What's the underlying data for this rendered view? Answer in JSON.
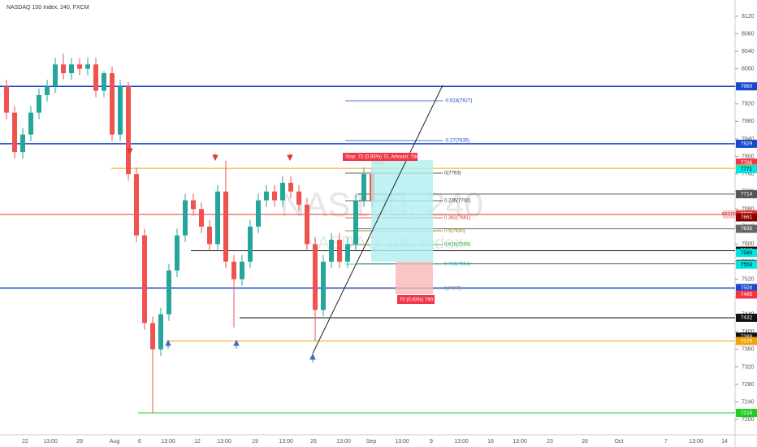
{
  "chart_data": {
    "type": "candlestick",
    "title": "NASDAQ 100 Index, 240, FXCM",
    "watermark": "NAS100, 240",
    "watermark_sub": "NASDAQ 100 Index",
    "up_color": "#26a69a",
    "down_color": "#ef5350",
    "ylim": [
      7165,
      8157
    ],
    "yticks": [
      7200,
      7240,
      7280,
      7320,
      7360,
      7400,
      7440,
      7480,
      7520,
      7560,
      7600,
      7640,
      7680,
      7720,
      7760,
      7800,
      7840,
      7880,
      7920,
      7960,
      8000,
      8040,
      8080,
      8120
    ],
    "x_labels": [
      "22",
      "13:00",
      "29",
      "Aug",
      "6",
      "13:00",
      "12",
      "13:00",
      "19",
      "13:00",
      "26",
      "13:00",
      "Sep",
      "13:00",
      "9",
      "13:00",
      "16",
      "13:00",
      "23",
      "26",
      "Oct",
      "7",
      "13:00",
      "14"
    ],
    "open": [
      7960,
      7900,
      7810,
      7850,
      7900,
      7940,
      7960,
      8010,
      7990,
      8010,
      8000,
      8010,
      7950,
      7990,
      7850,
      7960,
      7760,
      7620,
      7420,
      7360,
      7440,
      7540,
      7620,
      7700,
      7680,
      7640,
      7600,
      7720,
      7560,
      7520,
      7560,
      7640,
      7700,
      7720,
      7700,
      7740,
      7720,
      7690,
      7600,
      7450,
      7560,
      7610,
      7560,
      7600,
      7700,
      7760
    ],
    "high": [
      7975,
      7915,
      7865,
      7915,
      7955,
      7975,
      8025,
      8035,
      8025,
      8025,
      8025,
      8025,
      7995,
      8005,
      7975,
      7970,
      7775,
      7635,
      7435,
      7455,
      7555,
      7635,
      7715,
      7715,
      7695,
      7655,
      7735,
      7790,
      7575,
      7575,
      7655,
      7715,
      7735,
      7735,
      7755,
      7755,
      7735,
      7705,
      7615,
      7575,
      7625,
      7625,
      7615,
      7715,
      7775,
      7775
    ],
    "low": [
      7885,
      7795,
      7795,
      7835,
      7885,
      7925,
      7945,
      7975,
      7975,
      7985,
      7985,
      7935,
      7935,
      7835,
      7835,
      7745,
      7605,
      7405,
      7215,
      7345,
      7425,
      7525,
      7605,
      7665,
      7625,
      7585,
      7585,
      7545,
      7410,
      7505,
      7545,
      7625,
      7685,
      7685,
      7685,
      7705,
      7675,
      7585,
      7380,
      7435,
      7545,
      7545,
      7545,
      7585,
      7685,
      7685
    ],
    "close": [
      7900,
      7810,
      7850,
      7900,
      7940,
      7960,
      8010,
      7990,
      8010,
      8000,
      8010,
      7950,
      7990,
      7850,
      7960,
      7760,
      7620,
      7420,
      7360,
      7440,
      7540,
      7620,
      7700,
      7680,
      7640,
      7600,
      7720,
      7560,
      7520,
      7560,
      7640,
      7700,
      7720,
      7700,
      7740,
      7720,
      7690,
      7600,
      7450,
      7560,
      7610,
      7560,
      7600,
      7700,
      7760,
      7700
    ],
    "levels": [
      {
        "value": 7960,
        "color": "#1848cc"
      },
      {
        "value": 7829,
        "color": "#1848cc"
      },
      {
        "value": 7786,
        "color": "#f23645"
      },
      {
        "value": 7773,
        "color": "#f0a30a"
      },
      {
        "value": 7771,
        "color": "#00e5e5"
      },
      {
        "value": 7714,
        "color": "#555555"
      },
      {
        "value": 7668,
        "color": "#e53935"
      },
      {
        "value": 7661,
        "color": "#8b0000"
      },
      {
        "value": 7635,
        "color": "#666666"
      },
      {
        "value": 7585,
        "color": "#111111"
      },
      {
        "value": 7580,
        "color": "#00e5e5"
      },
      {
        "value": 7555,
        "color": "#555555"
      },
      {
        "value": 7553,
        "color": "#00e5e5"
      },
      {
        "value": 7500,
        "color": "#1848cc"
      },
      {
        "value": 7485,
        "color": "#f23645"
      },
      {
        "value": 7432,
        "color": "#111111"
      },
      {
        "value": 7389,
        "color": "#111111"
      },
      {
        "value": 7379,
        "color": "#f0a30a"
      },
      {
        "value": 7215,
        "color": "#22cc22"
      }
    ],
    "symbol_tag": "NAS100",
    "fib_labels": [
      "-0.618(7927)",
      "-0.27(7835)",
      "0(7763)",
      "0.236(7700)",
      "0.382(7661)",
      "0.5(7630)",
      "0.618(7599)",
      "0.786(7554)",
      "1(7497)"
    ],
    "stop_label": "Stop: 72 (0.93%) 72, Amount: 784",
    "loss_label": "70 (0.93%) 790"
  }
}
